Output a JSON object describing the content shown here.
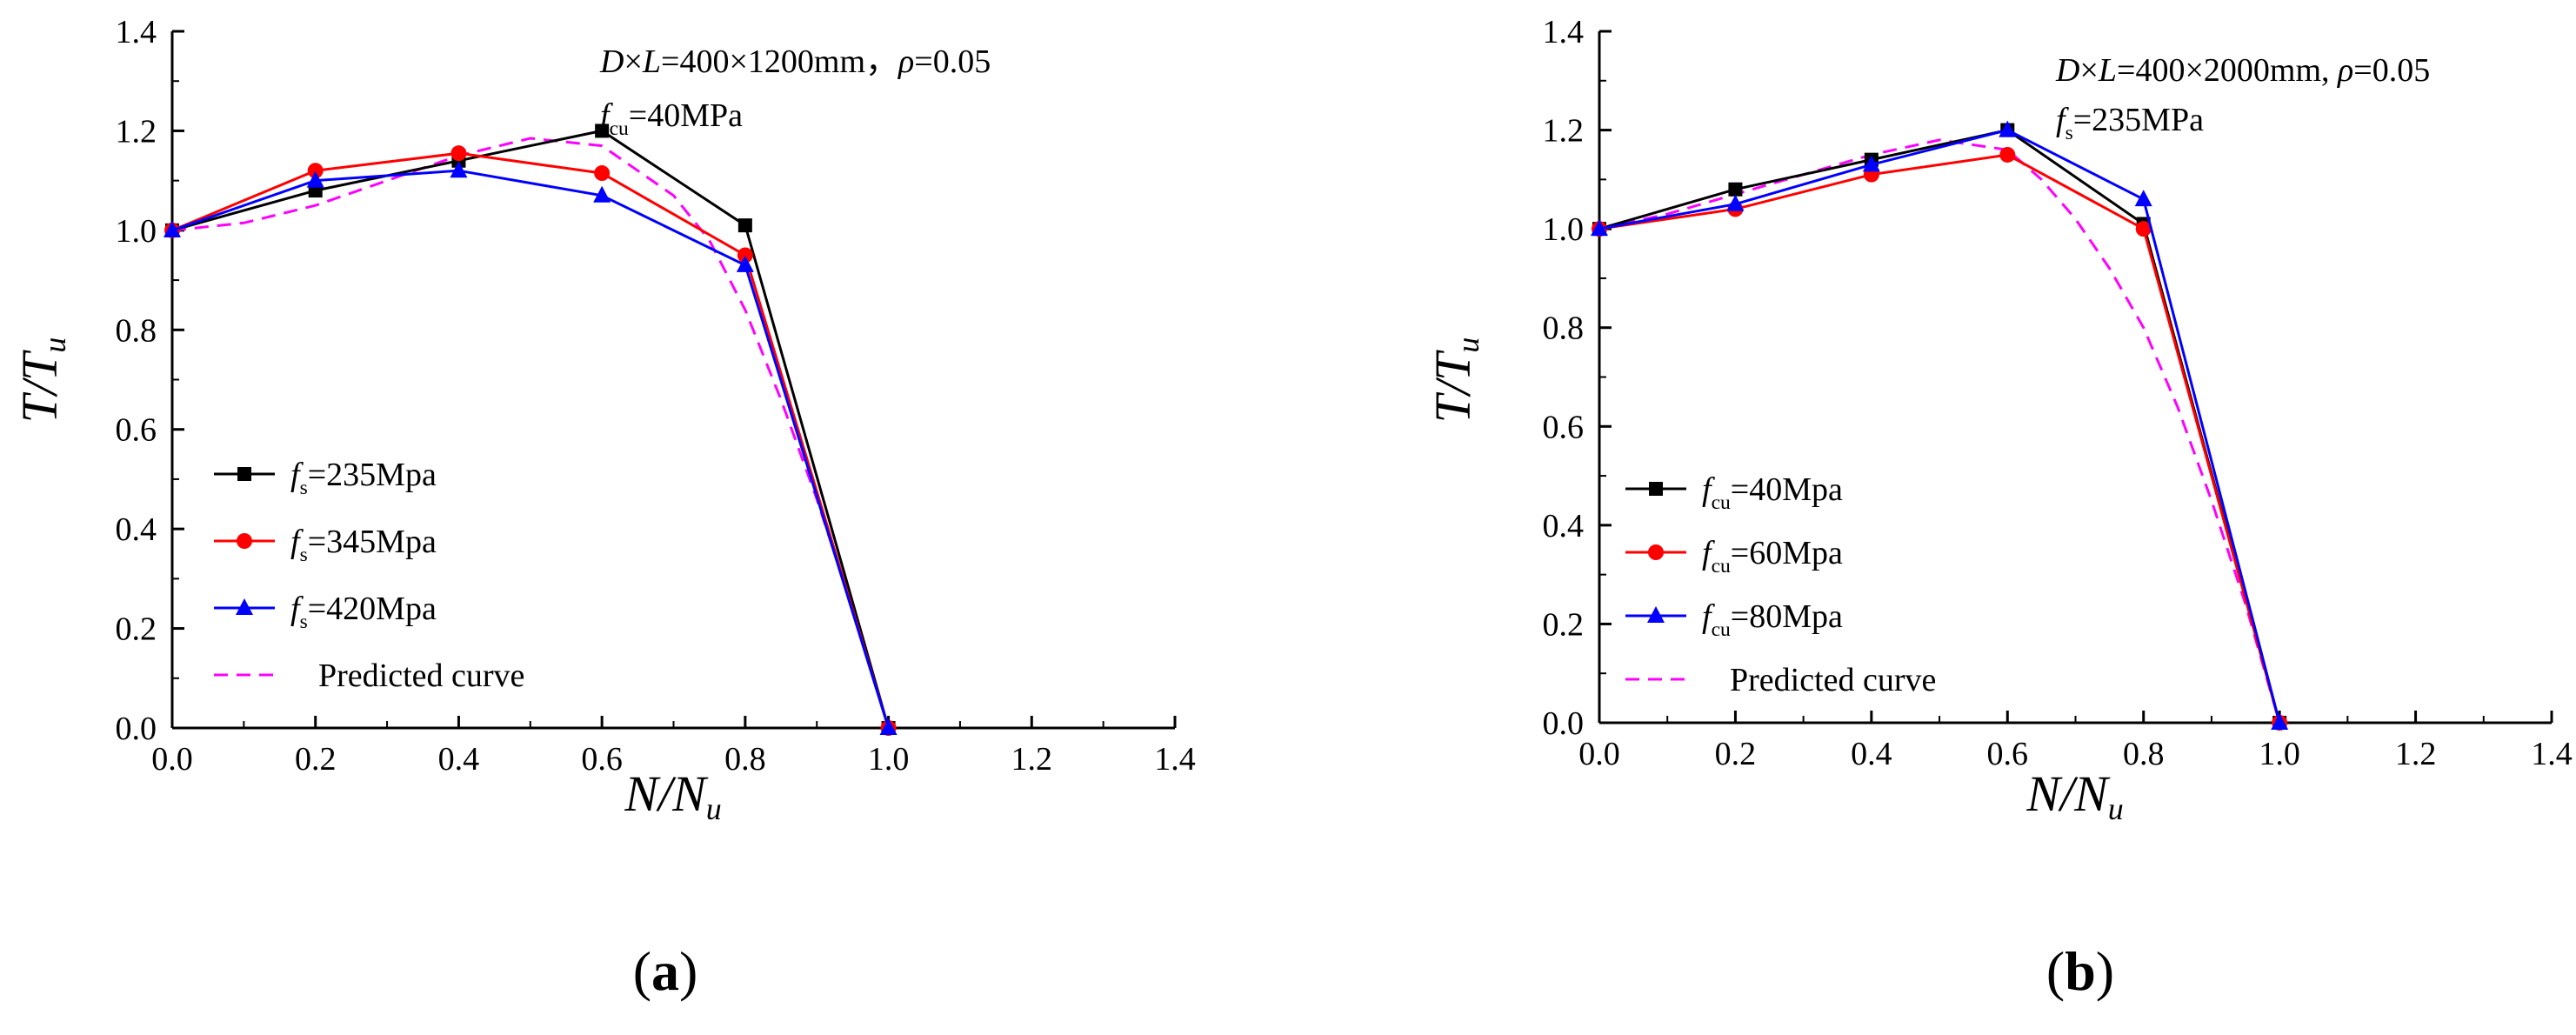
{
  "chart_data": [
    {
      "type": "line",
      "panel_label": "a",
      "xlabel": {
        "main": "N",
        "slash": "/",
        "main2": "N",
        "sub": "u"
      },
      "ylabel": {
        "main": "T",
        "slash": "/",
        "main2": "T",
        "sub": "u"
      },
      "xlim": [
        0,
        1.4
      ],
      "ylim": [
        0,
        1.4
      ],
      "xticks": [
        "0.0",
        "0.2",
        "0.4",
        "0.6",
        "0.8",
        "1.0",
        "1.2",
        "1.4"
      ],
      "yticks": [
        "0.0",
        "0.2",
        "0.4",
        "0.6",
        "0.8",
        "1.0",
        "1.2",
        "1.4"
      ],
      "annotations": [
        {
          "parts": [
            [
              "D",
              "i"
            ],
            [
              "×",
              ""
            ],
            [
              "L",
              "i"
            ],
            [
              "=400×1200mm，",
              ""
            ],
            [
              "ρ",
              "i"
            ],
            [
              "=0.05",
              ""
            ]
          ]
        },
        {
          "parts": [
            [
              "f",
              "i"
            ],
            [
              "cu",
              "sub"
            ],
            [
              "=40MPa",
              ""
            ]
          ]
        }
      ],
      "x": [
        0,
        0.2,
        0.4,
        0.6,
        0.8,
        1.0
      ],
      "series": [
        {
          "name": "fs=235Mpa",
          "label_parts": [
            [
              "f",
              "i"
            ],
            [
              "s",
              "sub"
            ],
            [
              "=235Mpa",
              ""
            ]
          ],
          "color": "#000000",
          "marker": "square",
          "values": [
            1.0,
            1.08,
            1.14,
            1.2,
            1.01,
            0.0
          ]
        },
        {
          "name": "fs=345Mpa",
          "label_parts": [
            [
              "f",
              "i"
            ],
            [
              "s",
              "sub"
            ],
            [
              "=345Mpa",
              ""
            ]
          ],
          "color": "#ff0000",
          "marker": "circle",
          "values": [
            1.0,
            1.12,
            1.155,
            1.115,
            0.95,
            0.0
          ]
        },
        {
          "name": "fs=420Mpa",
          "label_parts": [
            [
              "f",
              "i"
            ],
            [
              "s",
              "sub"
            ],
            [
              "=420Mpa",
              ""
            ]
          ],
          "color": "#0000ff",
          "marker": "triangle",
          "values": [
            1.0,
            1.1,
            1.12,
            1.07,
            0.93,
            0.0
          ]
        }
      ],
      "predicted": {
        "name": "Predicted curve",
        "color": "#ff00ff",
        "x": [
          0,
          0.1,
          0.2,
          0.3,
          0.4,
          0.5,
          0.6,
          0.7,
          0.75,
          0.8,
          0.85,
          0.9,
          0.95,
          1.0
        ],
        "y": [
          1.0,
          1.015,
          1.05,
          1.1,
          1.15,
          1.185,
          1.17,
          1.07,
          0.98,
          0.84,
          0.66,
          0.46,
          0.24,
          0.0
        ]
      }
    },
    {
      "type": "line",
      "panel_label": "b",
      "xlabel": {
        "main": "N",
        "slash": "/",
        "main2": "N",
        "sub": "u"
      },
      "ylabel": {
        "main": "T",
        "slash": "/",
        "main2": "T",
        "sub": "u"
      },
      "xlim": [
        0,
        1.4
      ],
      "ylim": [
        0,
        1.4
      ],
      "xticks": [
        "0.0",
        "0.2",
        "0.4",
        "0.6",
        "0.8",
        "1.0",
        "1.2",
        "1.4"
      ],
      "yticks": [
        "0.0",
        "0.2",
        "0.4",
        "0.6",
        "0.8",
        "1.0",
        "1.2",
        "1.4"
      ],
      "annotations": [
        {
          "parts": [
            [
              "D",
              "i"
            ],
            [
              "×",
              ""
            ],
            [
              "L",
              "i"
            ],
            [
              "=400×2000mm, ",
              ""
            ],
            [
              "ρ",
              "i"
            ],
            [
              "=0.05",
              ""
            ]
          ]
        },
        {
          "parts": [
            [
              "f",
              "i"
            ],
            [
              "s",
              "sub"
            ],
            [
              "=235MPa",
              ""
            ]
          ]
        }
      ],
      "x": [
        0,
        0.2,
        0.4,
        0.6,
        0.8,
        1.0
      ],
      "series": [
        {
          "name": "fcu=40Mpa",
          "label_parts": [
            [
              "f",
              "i"
            ],
            [
              "cu",
              "sub"
            ],
            [
              "=40Mpa",
              ""
            ]
          ],
          "color": "#000000",
          "marker": "square",
          "values": [
            1.0,
            1.08,
            1.14,
            1.2,
            1.01,
            0.0
          ]
        },
        {
          "name": "fcu=60Mpa",
          "label_parts": [
            [
              "f",
              "i"
            ],
            [
              "cu",
              "sub"
            ],
            [
              "=60Mpa",
              ""
            ]
          ],
          "color": "#ff0000",
          "marker": "circle",
          "values": [
            1.0,
            1.04,
            1.11,
            1.15,
            1.0,
            0.0
          ]
        },
        {
          "name": "fcu=80Mpa",
          "label_parts": [
            [
              "f",
              "i"
            ],
            [
              "cu",
              "sub"
            ],
            [
              "=80Mpa",
              ""
            ]
          ],
          "color": "#0000ff",
          "marker": "triangle",
          "values": [
            1.0,
            1.05,
            1.13,
            1.2,
            1.06,
            0.0
          ]
        }
      ],
      "predicted": {
        "name": "Predicted curve",
        "color": "#ff00ff",
        "x": [
          0,
          0.1,
          0.2,
          0.3,
          0.4,
          0.5,
          0.6,
          0.65,
          0.7,
          0.75,
          0.8,
          0.85,
          0.9,
          0.95,
          1.0
        ],
        "y": [
          1.0,
          1.03,
          1.07,
          1.11,
          1.15,
          1.18,
          1.16,
          1.1,
          1.02,
          0.92,
          0.8,
          0.64,
          0.45,
          0.24,
          0.0
        ]
      }
    }
  ]
}
